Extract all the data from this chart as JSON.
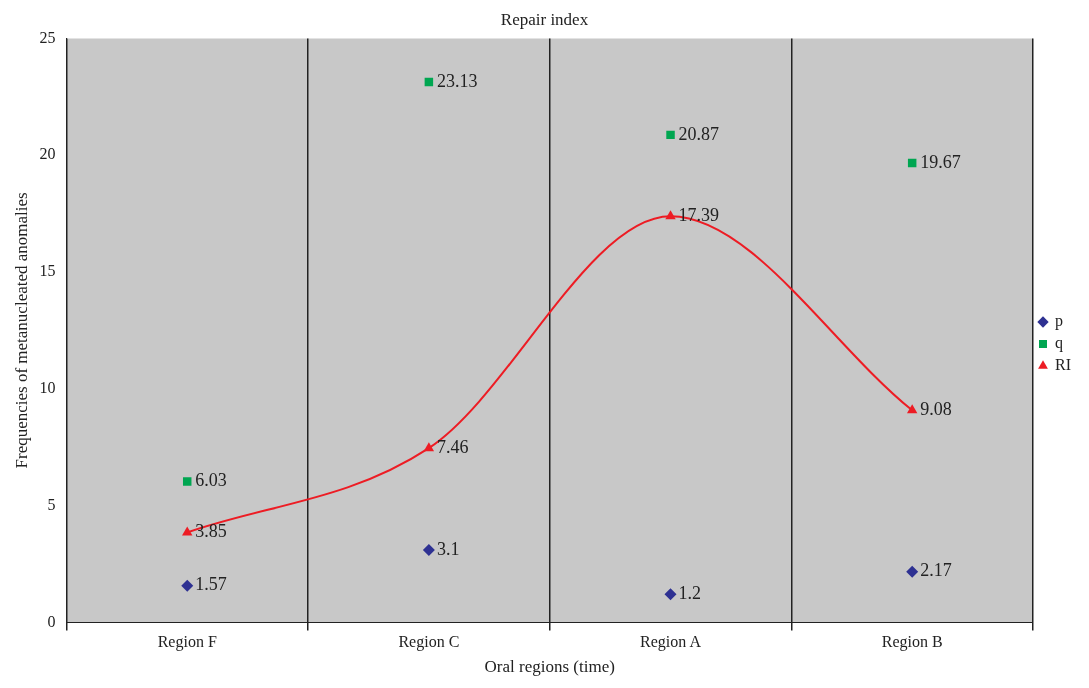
{
  "chart_data": {
    "type": "scatter",
    "title": "Repair index",
    "xlabel": "Oral regions (time)",
    "ylabel": "Frequencies of metanucleated anomalies",
    "categories": [
      "Region F",
      "Region C",
      "Region A",
      "Region B"
    ],
    "series": [
      {
        "name": "p",
        "marker": "diamond",
        "color": "#2e3192",
        "values": [
          1.57,
          3.1,
          1.2,
          2.17
        ]
      },
      {
        "name": "q",
        "marker": "square",
        "color": "#00a651",
        "values": [
          6.03,
          23.13,
          20.87,
          19.67
        ]
      },
      {
        "name": "RI",
        "type": "line",
        "marker": "triangle",
        "color": "#ed1c24",
        "values": [
          3.85,
          7.46,
          17.39,
          9.08
        ]
      }
    ],
    "ylim": [
      0,
      25
    ],
    "yticks": [
      0,
      5,
      10,
      15,
      20,
      25
    ],
    "grid": "x",
    "legend": "right",
    "data_labels": true
  }
}
